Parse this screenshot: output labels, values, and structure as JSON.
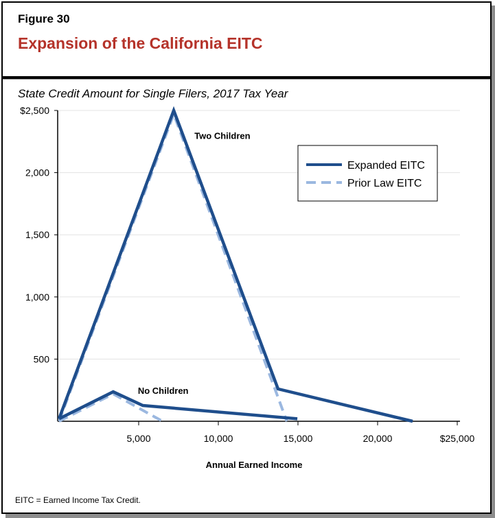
{
  "figure_label": "Figure 30",
  "title": "Expansion of the California EITC",
  "subtitle": "State Credit Amount for Single Filers, 2017 Tax Year",
  "footnote": "EITC = Earned Income Tax Credit.",
  "colors": {
    "title": "#b5332a",
    "expanded": "#1f4e8c",
    "prior": "#9bb8e0"
  },
  "chart_data": {
    "type": "line",
    "xlabel": "Annual Earned Income",
    "ylabel": "",
    "xlim": [
      0,
      25000
    ],
    "ylim": [
      0,
      2500
    ],
    "x_ticks": [
      5000,
      10000,
      15000,
      20000,
      25000
    ],
    "x_tick_labels": [
      "5,000",
      "10,000",
      "15,000",
      "20,000",
      "$25,000"
    ],
    "y_ticks": [
      500,
      1000,
      1500,
      2000,
      2500
    ],
    "y_tick_labels": [
      "500",
      "1,000",
      "1,500",
      "2,000",
      "$2,500"
    ],
    "grid": "horizontal",
    "legend_placement": "top-right",
    "legend": [
      {
        "label": "Expanded EITC",
        "style": "solid"
      },
      {
        "label": "Prior Law EITC",
        "style": "dashed"
      }
    ],
    "annotations": [
      {
        "text": "Two Children",
        "x": 8500,
        "y": 2270
      },
      {
        "text": "No Children",
        "x": 4950,
        "y": 220
      }
    ],
    "series": [
      {
        "group": "Two Children",
        "legend": "Expanded EITC",
        "points": [
          [
            0,
            20
          ],
          [
            7200,
            2500
          ],
          [
            13750,
            260
          ],
          [
            22200,
            0
          ]
        ]
      },
      {
        "group": "Two Children",
        "legend": "Prior Law EITC",
        "points": [
          [
            0,
            0
          ],
          [
            7200,
            2470
          ],
          [
            14300,
            0
          ]
        ]
      },
      {
        "group": "No Children",
        "legend": "Expanded EITC",
        "points": [
          [
            0,
            20
          ],
          [
            3400,
            237
          ],
          [
            5260,
            127
          ],
          [
            14960,
            20
          ]
        ]
      },
      {
        "group": "No Children",
        "legend": "Prior Law EITC",
        "points": [
          [
            0,
            0
          ],
          [
            3400,
            220
          ],
          [
            6500,
            0
          ]
        ]
      }
    ]
  }
}
